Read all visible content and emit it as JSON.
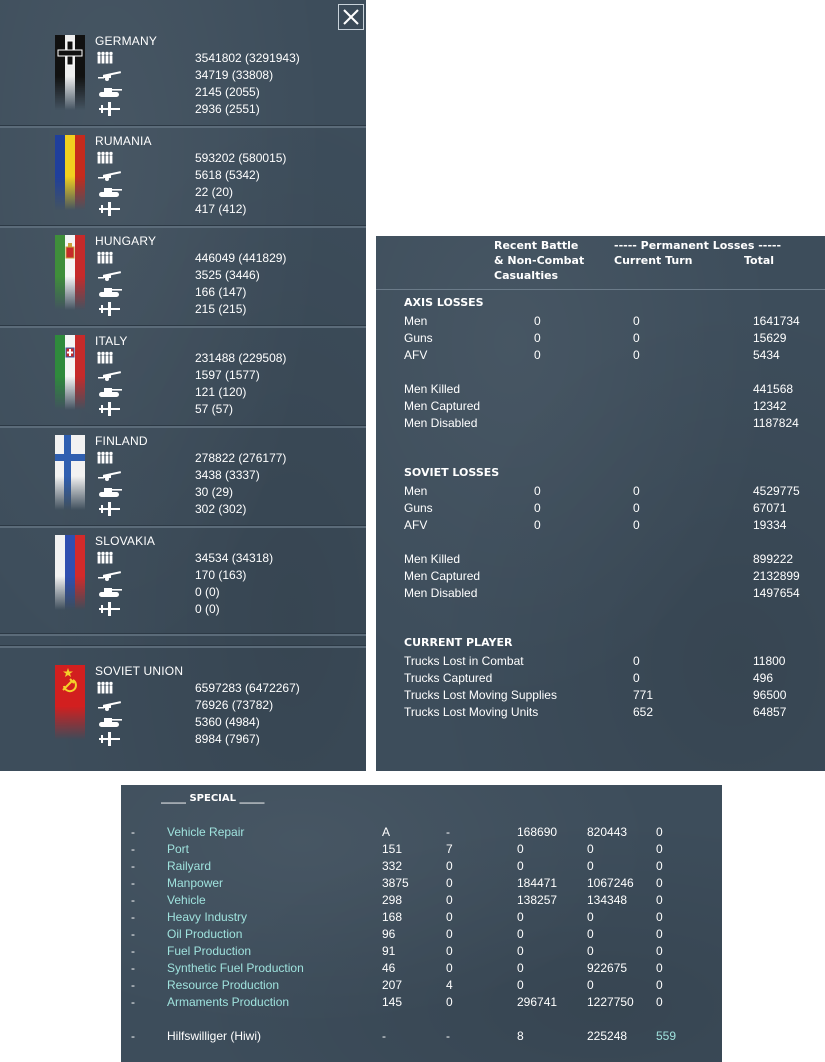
{
  "nations_panel": {
    "close_label": "✕",
    "nations": [
      {
        "name": "GERMANY",
        "men": "3541802 (3291943)",
        "guns": "34719 (33808)",
        "afv": "2145 (2055)",
        "aircraft": "2936 (2551)"
      },
      {
        "name": "RUMANIA",
        "men": "593202 (580015)",
        "guns": "5618 (5342)",
        "afv": "22 (20)",
        "aircraft": "417 (412)"
      },
      {
        "name": "HUNGARY",
        "men": "446049 (441829)",
        "guns": "3525 (3446)",
        "afv": "166 (147)",
        "aircraft": "215 (215)"
      },
      {
        "name": "ITALY",
        "men": "231488 (229508)",
        "guns": "1597 (1577)",
        "afv": "121 (120)",
        "aircraft": "57 (57)"
      },
      {
        "name": "FINLAND",
        "men": "278822 (276177)",
        "guns": "3438 (3337)",
        "afv": "30 (29)",
        "aircraft": "302 (302)"
      },
      {
        "name": "SLOVAKIA",
        "men": "34534 (34318)",
        "guns": "170 (163)",
        "afv": "0 (0)",
        "aircraft": "0 (0)"
      },
      {
        "name": "SOVIET UNION",
        "men": "6597283 (6472267)",
        "guns": "76926 (73782)",
        "afv": "5360 (4984)",
        "aircraft": "8984 (7967)"
      }
    ]
  },
  "losses_panel": {
    "headers": {
      "recent_1": "Recent Battle",
      "recent_2": "& Non-Combat",
      "recent_3": "Casualties",
      "permanent": "----- Permanent Losses -----",
      "current_turn": "Current Turn",
      "total": "Total"
    },
    "axis": {
      "title": "AXIS LOSSES",
      "rows": [
        {
          "label": "Men",
          "recent": "0",
          "turn": "0",
          "total": "1641734"
        },
        {
          "label": "Guns",
          "recent": "0",
          "turn": "0",
          "total": "15629"
        },
        {
          "label": "AFV",
          "recent": "0",
          "turn": "0",
          "total": "5434"
        }
      ],
      "detail": [
        {
          "label": "Men Killed",
          "total": "441568"
        },
        {
          "label": "Men Captured",
          "total": "12342"
        },
        {
          "label": "Men Disabled",
          "total": "1187824"
        }
      ]
    },
    "soviet": {
      "title": "SOVIET LOSSES",
      "rows": [
        {
          "label": "Men",
          "recent": "0",
          "turn": "0",
          "total": "4529775"
        },
        {
          "label": "Guns",
          "recent": "0",
          "turn": "0",
          "total": "67071"
        },
        {
          "label": "AFV",
          "recent": "0",
          "turn": "0",
          "total": "19334"
        }
      ],
      "detail": [
        {
          "label": "Men Killed",
          "total": "899222"
        },
        {
          "label": "Men Captured",
          "total": "2132899"
        },
        {
          "label": "Men Disabled",
          "total": "1497654"
        }
      ]
    },
    "player": {
      "title": "CURRENT PLAYER",
      "rows": [
        {
          "label": "Trucks Lost in Combat",
          "turn": "0",
          "total": "11800"
        },
        {
          "label": "Trucks Captured",
          "turn": "0",
          "total": "496"
        },
        {
          "label": "Trucks Lost Moving Supplies",
          "turn": "771",
          "total": "96500"
        },
        {
          "label": "Trucks Lost Moving Units",
          "turn": "652",
          "total": "64857"
        }
      ]
    }
  },
  "special_panel": {
    "title": "_____ SPECIAL _____",
    "rows": [
      {
        "dash": "-",
        "name": "Vehicle Repair",
        "c1": "A",
        "c2": "-",
        "c3": "168690",
        "c4": "820443",
        "c5": "0"
      },
      {
        "dash": "-",
        "name": "Port",
        "c1": "151",
        "c2": "7",
        "c3": "0",
        "c4": "0",
        "c5": "0"
      },
      {
        "dash": "-",
        "name": "Railyard",
        "c1": "332",
        "c2": "0",
        "c3": "0",
        "c4": "0",
        "c5": "0"
      },
      {
        "dash": "-",
        "name": "Manpower",
        "c1": "3875",
        "c2": "0",
        "c3": "184471",
        "c4": "1067246",
        "c5": "0"
      },
      {
        "dash": "-",
        "name": "Vehicle",
        "c1": "298",
        "c2": "0",
        "c3": "138257",
        "c4": "134348",
        "c5": "0"
      },
      {
        "dash": "-",
        "name": "Heavy Industry",
        "c1": "168",
        "c2": "0",
        "c3": "0",
        "c4": "0",
        "c5": "0"
      },
      {
        "dash": "-",
        "name": "Oil Production",
        "c1": "96",
        "c2": "0",
        "c3": "0",
        "c4": "0",
        "c5": "0"
      },
      {
        "dash": "-",
        "name": "Fuel Production",
        "c1": "91",
        "c2": "0",
        "c3": "0",
        "c4": "0",
        "c5": "0"
      },
      {
        "dash": "-",
        "name": "Synthetic Fuel Production",
        "c1": "46",
        "c2": "0",
        "c3": "0",
        "c4": "922675",
        "c5": "0"
      },
      {
        "dash": "-",
        "name": "Resource Production",
        "c1": "207",
        "c2": "4",
        "c3": "0",
        "c4": "0",
        "c5": "0"
      },
      {
        "dash": "-",
        "name": "Armaments Production",
        "c1": "145",
        "c2": "0",
        "c3": "296741",
        "c4": "1227750",
        "c5": "0"
      }
    ],
    "hiwi": {
      "dash": "-",
      "name": "Hilfswilliger (Hiwi)",
      "c1": "-",
      "c2": "-",
      "c3": "8",
      "c4": "225248",
      "c5": "559"
    }
  },
  "colors": {
    "panel_bg": "#3d4d5b",
    "text": "#ffffff",
    "link": "#9fe2dd"
  }
}
